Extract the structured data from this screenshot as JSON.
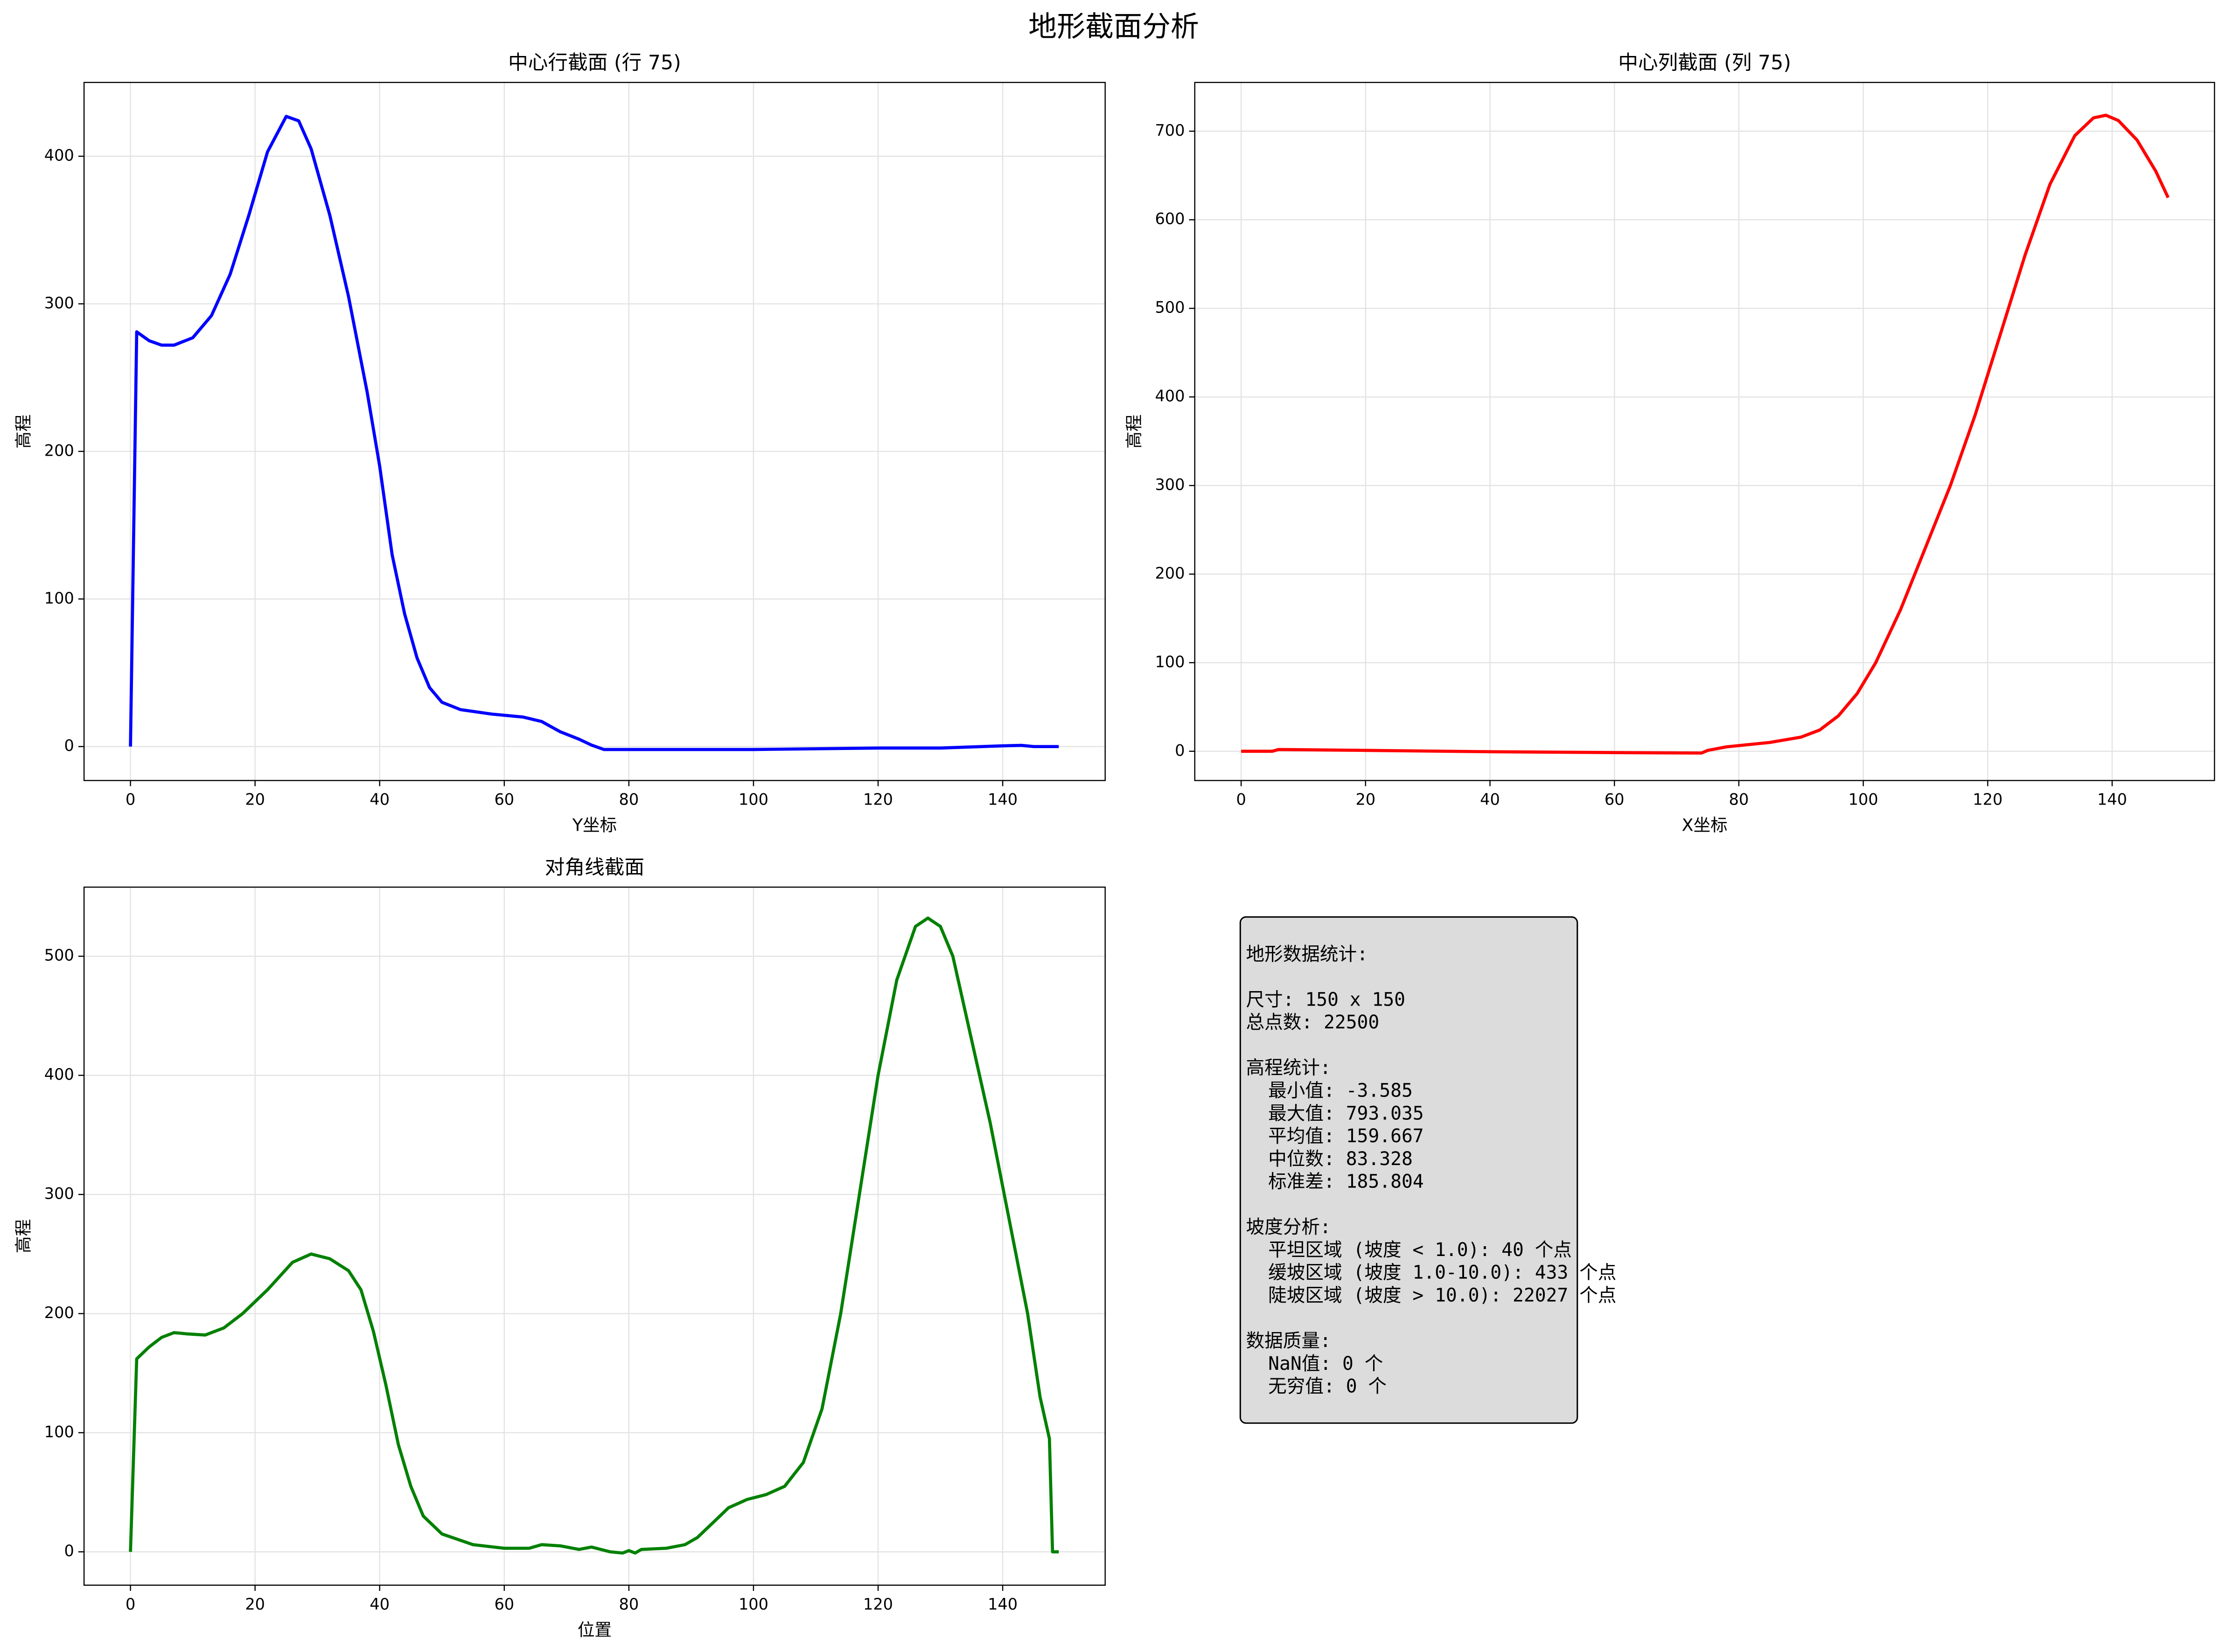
{
  "title": "地形截面分析",
  "chart_data": [
    {
      "type": "line",
      "title": "中心行截面 (行 75)",
      "x_label": "Y坐标",
      "y_label": "高程",
      "color": "#0000ff",
      "grid": true,
      "xlim": [
        -7.45,
        156.45
      ],
      "xticks": [
        0,
        20,
        40,
        60,
        80,
        100,
        120,
        140
      ],
      "ylim": [
        -23,
        450
      ],
      "yticks": [
        0,
        100,
        200,
        300,
        400
      ],
      "x": [
        0,
        1,
        3,
        5,
        7,
        10,
        13,
        16,
        19,
        22,
        25,
        27,
        29,
        32,
        35,
        38,
        40,
        42,
        44,
        46,
        48,
        50,
        53,
        58,
        63,
        66,
        69,
        72,
        74,
        76,
        80,
        100,
        120,
        130,
        140,
        143,
        145,
        149
      ],
      "values": [
        0,
        281,
        275,
        272,
        272,
        277,
        292,
        320,
        360,
        403,
        427,
        424,
        405,
        360,
        305,
        240,
        190,
        130,
        90,
        60,
        40,
        30,
        25,
        22,
        20,
        17,
        10,
        5,
        1,
        -2,
        -2,
        -2,
        -1,
        -1,
        0.5,
        0.8,
        0,
        0
      ]
    },
    {
      "type": "line",
      "title": "中心列截面 (列 75)",
      "x_label": "X坐标",
      "y_label": "高程",
      "color": "#ff0000",
      "grid": true,
      "xlim": [
        -7.45,
        156.45
      ],
      "xticks": [
        0,
        20,
        40,
        60,
        80,
        100,
        120,
        140
      ],
      "ylim": [
        -33,
        755
      ],
      "yticks": [
        0,
        100,
        200,
        300,
        400,
        500,
        600,
        700
      ],
      "x": [
        0,
        5,
        6,
        20,
        40,
        60,
        74,
        75,
        78,
        85,
        90,
        93,
        96,
        99,
        102,
        106,
        110,
        114,
        118,
        122,
        126,
        130,
        134,
        137,
        139,
        141,
        144,
        147,
        149
      ],
      "values": [
        0,
        0,
        2,
        1,
        -0.5,
        -1.5,
        -2,
        1,
        5,
        10,
        16,
        24,
        40,
        65,
        100,
        160,
        230,
        300,
        380,
        470,
        560,
        640,
        695,
        715,
        718,
        712,
        690,
        655,
        625
      ]
    },
    {
      "type": "line",
      "title": "对角线截面",
      "x_label": "位置",
      "y_label": "高程",
      "color": "#008000",
      "grid": true,
      "xlim": [
        -7.45,
        156.45
      ],
      "xticks": [
        0,
        20,
        40,
        60,
        80,
        100,
        120,
        140
      ],
      "ylim": [
        -28,
        558
      ],
      "yticks": [
        0,
        100,
        200,
        300,
        400,
        500
      ],
      "x": [
        0,
        1,
        3,
        5,
        7,
        9,
        12,
        15,
        18,
        22,
        26,
        29,
        32,
        35,
        37,
        39,
        41,
        43,
        45,
        47,
        50,
        55,
        60,
        64,
        66,
        69,
        72,
        74,
        77,
        79,
        80,
        81,
        82,
        86,
        89,
        91,
        93,
        96,
        99,
        102,
        105,
        108,
        111,
        114,
        117,
        120,
        123,
        126,
        128,
        130,
        132,
        135,
        138,
        141,
        144,
        146,
        147.5,
        148,
        149
      ],
      "values": [
        0,
        162,
        172,
        180,
        184,
        183,
        182,
        188,
        200,
        220,
        243,
        250,
        246,
        236,
        220,
        185,
        140,
        90,
        55,
        30,
        15,
        6,
        3,
        3,
        6,
        5,
        2,
        4,
        0,
        -1,
        1,
        -1,
        2,
        3,
        6,
        12,
        22,
        37,
        44,
        48,
        55,
        75,
        120,
        200,
        300,
        400,
        480,
        525,
        532,
        525,
        500,
        430,
        360,
        280,
        200,
        130,
        95,
        0,
        0
      ]
    }
  ],
  "stats_box": {
    "groups": [
      [
        "地形数据统计:"
      ],
      [
        "尺寸: 150 x 150",
        "总点数: 22500"
      ],
      [
        "高程统计:",
        "  最小值: -3.585",
        "  最大值: 793.035",
        "  平均值: 159.667",
        "  中位数: 83.328",
        "  标准差: 185.804"
      ],
      [
        "坡度分析:",
        "  平坦区域 (坡度 < 1.0): 40 个点",
        "  缓坡区域 (坡度 1.0-10.0): 433 个点",
        "  陡坡区域 (坡度 > 10.0): 22027 个点"
      ],
      [
        "数据质量:",
        "  NaN值: 0 个",
        "  无穷值: 0 个"
      ]
    ]
  }
}
